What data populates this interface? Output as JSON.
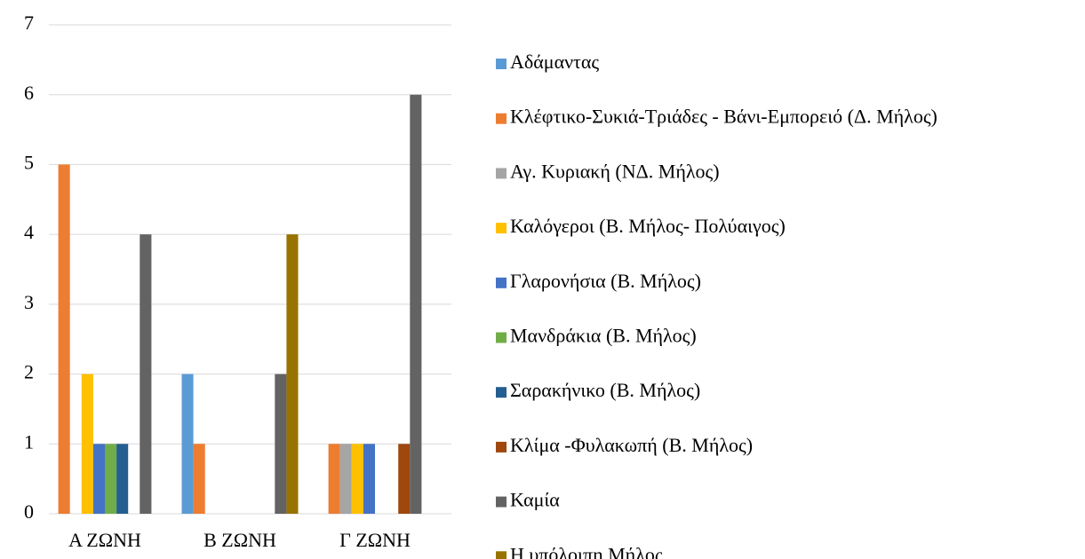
{
  "chart_data": {
    "type": "bar",
    "categories": [
      "Α ΖΩΝΗ",
      "Β ΖΩΝΗ",
      "Γ ΖΩΝΗ"
    ],
    "series": [
      {
        "name": "Αδάμαντας",
        "color": "#5b9bd5",
        "values": [
          0,
          2,
          0
        ]
      },
      {
        "name": "Κλέφτικο-Συκιά-Τριάδες - Βάνι-Εμπορειό (Δ. Μήλος)",
        "color": "#ed7d31",
        "values": [
          5,
          1,
          1
        ]
      },
      {
        "name": "Αγ. Κυριακή (ΝΔ. Μήλος)",
        "color": "#a5a5a5",
        "values": [
          0,
          0,
          1
        ]
      },
      {
        "name": "Καλόγεροι (Β. Μήλος- Πολύαιγος)",
        "color": "#ffc000",
        "values": [
          2,
          0,
          1
        ]
      },
      {
        "name": "Γλαρονήσια (Β. Μήλος)",
        "color": "#4472c4",
        "values": [
          1,
          0,
          1
        ]
      },
      {
        "name": "Μανδράκια (Β. Μήλος)",
        "color": "#70ad47",
        "values": [
          1,
          0,
          0
        ]
      },
      {
        "name": "Σαρακήνικο (Β. Μήλος)",
        "color": "#255e91",
        "values": [
          1,
          0,
          0
        ]
      },
      {
        "name": "Κλίμα -Φυλακωπή (Β. Μήλος)",
        "color": "#9e480e",
        "values": [
          0,
          0,
          1
        ]
      },
      {
        "name": "Καμία",
        "color": "#636363",
        "values": [
          4,
          2,
          6
        ]
      },
      {
        "name": "Η υπόλοιπη Μήλος",
        "color": "#997300",
        "values": [
          0,
          4,
          0
        ]
      }
    ],
    "ylim": [
      0,
      7
    ],
    "yticks": [
      0,
      1,
      2,
      3,
      4,
      5,
      6,
      7
    ],
    "grid": true,
    "legend": "right"
  }
}
